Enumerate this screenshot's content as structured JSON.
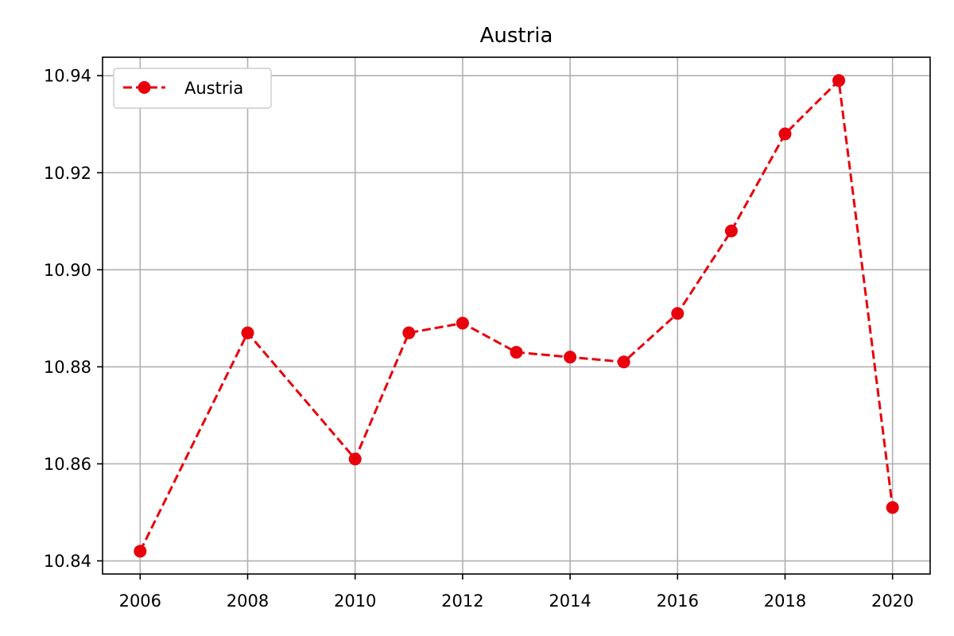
{
  "chart_data": {
    "type": "line",
    "title": "Austria",
    "xlabel": "",
    "ylabel": "",
    "xlim": [
      2005.3,
      2020.7
    ],
    "ylim": [
      10.8373,
      10.9438
    ],
    "x_ticks": [
      2006,
      2008,
      2010,
      2012,
      2014,
      2016,
      2018,
      2020
    ],
    "y_ticks": [
      10.84,
      10.86,
      10.88,
      10.9,
      10.92,
      10.94
    ],
    "y_tick_labels": [
      "10.84",
      "10.86",
      "10.88",
      "10.90",
      "10.92",
      "10.94"
    ],
    "grid": true,
    "legend_position": "upper-left",
    "series": [
      {
        "name": "Austria",
        "color": "#e8000b",
        "line_style": "dashed",
        "marker": "circle",
        "x": [
          2006,
          2008,
          2010,
          2011,
          2012,
          2013,
          2014,
          2015,
          2016,
          2017,
          2018,
          2019,
          2020
        ],
        "y": [
          10.842,
          10.887,
          10.861,
          10.887,
          10.889,
          10.883,
          10.882,
          10.881,
          10.891,
          10.908,
          10.928,
          10.939,
          10.851
        ]
      }
    ]
  }
}
